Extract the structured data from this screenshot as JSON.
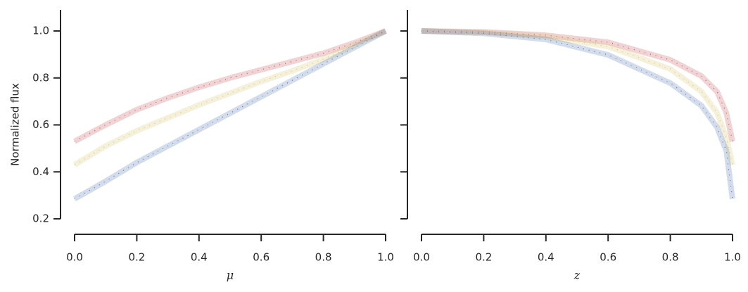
{
  "chart_data": [
    {
      "type": "line",
      "x_label": "μ",
      "y_label": "Normalized flux",
      "x": [
        0,
        0.1,
        0.2,
        0.3,
        0.4,
        0.5,
        0.6,
        0.7,
        0.8,
        0.9,
        1.0
      ],
      "series": [
        {
          "color": "#c44e52",
          "values": [
            0.53,
            0.6,
            0.665,
            0.715,
            0.76,
            0.8,
            0.835,
            0.87,
            0.905,
            0.95,
            1.0
          ]
        },
        {
          "color": "#d8c36a",
          "values": [
            0.43,
            0.51,
            0.575,
            0.63,
            0.685,
            0.735,
            0.785,
            0.83,
            0.88,
            0.94,
            1.0
          ]
        },
        {
          "color": "#4c72b0",
          "values": [
            0.285,
            0.36,
            0.44,
            0.51,
            0.58,
            0.65,
            0.72,
            0.79,
            0.86,
            0.93,
            1.0
          ]
        }
      ],
      "xlim": [
        0,
        1
      ],
      "xticks": [
        {
          "value": 0,
          "label": "0.0"
        },
        0.2,
        0.4,
        0.6,
        0.8,
        {
          "value": 1,
          "label": "1.0"
        }
      ],
      "ylim": [
        0.2,
        1.09
      ],
      "yticks": [
        0.2,
        0.4,
        0.6,
        0.8,
        {
          "value": 1,
          "label": "1.0"
        }
      ]
    },
    {
      "type": "line",
      "x_label": "z",
      "x": [
        0,
        0.2,
        0.4,
        0.6,
        0.8,
        0.9,
        0.95,
        0.98,
        1.0
      ],
      "series": [
        {
          "color": "#c44e52",
          "values": [
            1.0,
            0.996,
            0.982,
            0.952,
            0.877,
            0.808,
            0.742,
            0.652,
            0.53
          ]
        },
        {
          "color": "#d8c36a",
          "values": [
            1.0,
            0.994,
            0.976,
            0.934,
            0.838,
            0.742,
            0.652,
            0.548,
            0.43
          ]
        },
        {
          "color": "#4c72b0",
          "values": [
            1.0,
            0.99,
            0.964,
            0.898,
            0.778,
            0.682,
            0.59,
            0.49,
            0.285
          ]
        }
      ],
      "xlim": [
        0,
        1
      ],
      "xticks": [
        {
          "value": 0,
          "label": "0.0"
        },
        0.2,
        0.4,
        0.6,
        0.8,
        {
          "value": 1,
          "label": "1.0"
        }
      ],
      "ylim": [
        0.2,
        1.09
      ],
      "yticks": [
        0.2,
        0.4,
        0.6,
        0.8,
        {
          "value": 1,
          "label": "1.0"
        }
      ]
    }
  ]
}
